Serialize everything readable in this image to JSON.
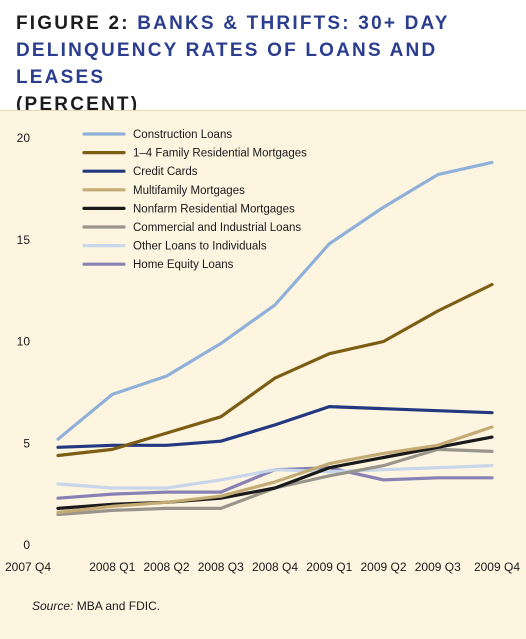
{
  "header": {
    "figure_label": "FIGURE 2:",
    "title_line1": "BANKS & THRIFTS: 30+ DAY",
    "title_line2": "DELINQUENCY RATES OF LOANS AND LEASES",
    "subtitle": "(PERCENT)"
  },
  "source": {
    "label": "Source:",
    "text": "MBA and FDIC."
  },
  "chart_data": {
    "type": "line",
    "title": "BANKS & THRIFTS: 30+ DAY DELINQUENCY RATES OF LOANS AND LEASES",
    "subtitle": "(PERCENT)",
    "xlabel": "",
    "ylabel": "",
    "ylim": [
      0,
      20
    ],
    "yticks": [
      0,
      5,
      10,
      15,
      20
    ],
    "grid": false,
    "legend_position": "top-left",
    "x": [
      "2007 Q4",
      "2008 Q1",
      "2008 Q2",
      "2008 Q3",
      "2008 Q4",
      "2009 Q1",
      "2009 Q2",
      "2009 Q3",
      "2009 Q4"
    ],
    "series": [
      {
        "name": "Construction Loans",
        "color": "#8fb0d9",
        "values": [
          5.2,
          7.4,
          8.3,
          9.9,
          11.8,
          14.8,
          16.6,
          18.2,
          18.8
        ]
      },
      {
        "name": "1–4 Family Residential Mortgages",
        "color": "#7b5e14",
        "values": [
          4.4,
          4.7,
          5.5,
          6.3,
          8.2,
          9.4,
          10.0,
          11.5,
          12.8
        ]
      },
      {
        "name": "Credit Cards",
        "color": "#23397f",
        "values": [
          4.8,
          4.9,
          4.9,
          5.1,
          5.9,
          6.8,
          6.7,
          6.6,
          6.5
        ]
      },
      {
        "name": "Multifamily Mortgages",
        "color": "#c4ab74",
        "values": [
          1.6,
          1.9,
          2.1,
          2.4,
          3.1,
          4.0,
          4.5,
          4.9,
          5.8
        ]
      },
      {
        "name": "Nonfarm Residential Mortgages",
        "color": "#1a1a1a",
        "values": [
          1.8,
          2.0,
          2.1,
          2.3,
          2.8,
          3.8,
          4.3,
          4.8,
          5.3
        ]
      },
      {
        "name": "Commercial and Industrial Loans",
        "color": "#9a958b",
        "values": [
          1.5,
          1.7,
          1.8,
          1.8,
          2.8,
          3.4,
          3.9,
          4.7,
          4.6
        ]
      },
      {
        "name": "Other Loans to Individuals",
        "color": "#c8d6ea",
        "values": [
          3.0,
          2.8,
          2.8,
          3.2,
          3.7,
          3.6,
          3.7,
          3.8,
          3.9
        ]
      },
      {
        "name": "Home Equity Loans",
        "color": "#8781b4",
        "values": [
          2.3,
          2.5,
          2.6,
          2.6,
          3.7,
          3.8,
          3.2,
          3.3,
          3.3
        ]
      }
    ]
  }
}
